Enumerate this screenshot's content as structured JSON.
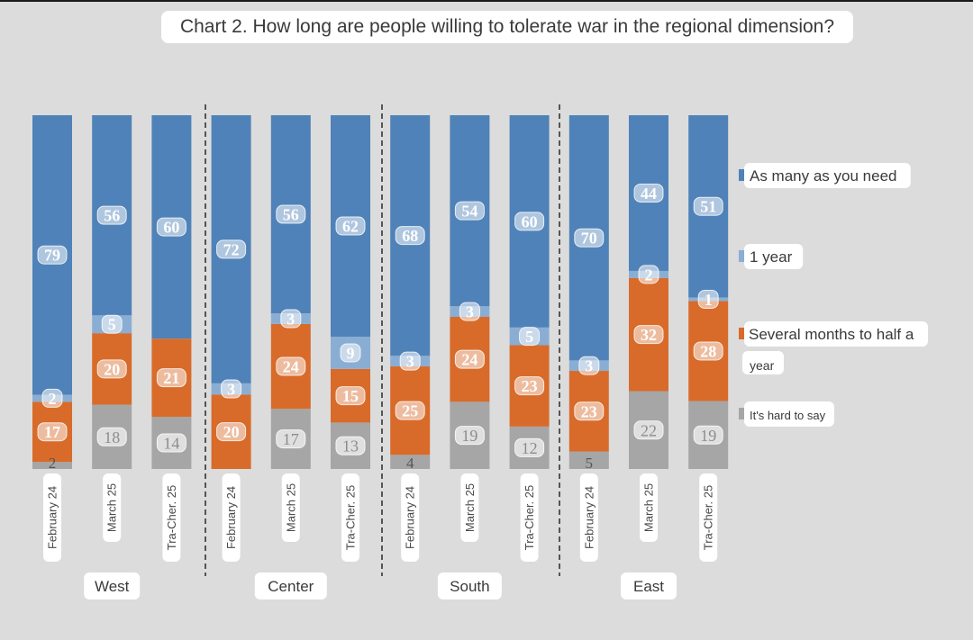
{
  "chart_data": {
    "type": "bar",
    "stacked": true,
    "title": "Chart 2. How long are people willing to tolerate war in the regional dimension?",
    "ylim": [
      0,
      100
    ],
    "grid": false,
    "legend_position": "right",
    "groups": [
      "West",
      "Center",
      "South",
      "East"
    ],
    "categories": [
      "February 24",
      "March 25",
      "Tra-Cher. 25",
      "February 24",
      "March 25",
      "Tra-Cher. 25",
      "February 24",
      "March 25",
      "Tra-Cher. 25",
      "February 24",
      "March 25",
      "Tra-Cher. 25"
    ],
    "series": [
      {
        "name": "It's hard to say",
        "color": "#a6a6a6",
        "values": [
          2,
          18,
          14,
          null,
          17,
          13,
          4,
          19,
          12,
          5,
          22,
          19
        ]
      },
      {
        "name": "Several months to half a year",
        "color": "#d86b2a",
        "values": [
          17,
          20,
          21,
          20,
          24,
          15,
          25,
          24,
          23,
          23,
          32,
          28
        ]
      },
      {
        "name": "1 year",
        "color": "#8aaed3",
        "values": [
          2,
          5,
          null,
          3,
          3,
          9,
          3,
          3,
          5,
          3,
          2,
          1
        ]
      },
      {
        "name": "As many as you need",
        "color": "#4f82b8",
        "values": [
          79,
          56,
          60,
          72,
          56,
          62,
          68,
          54,
          60,
          70,
          44,
          51
        ]
      }
    ]
  }
}
